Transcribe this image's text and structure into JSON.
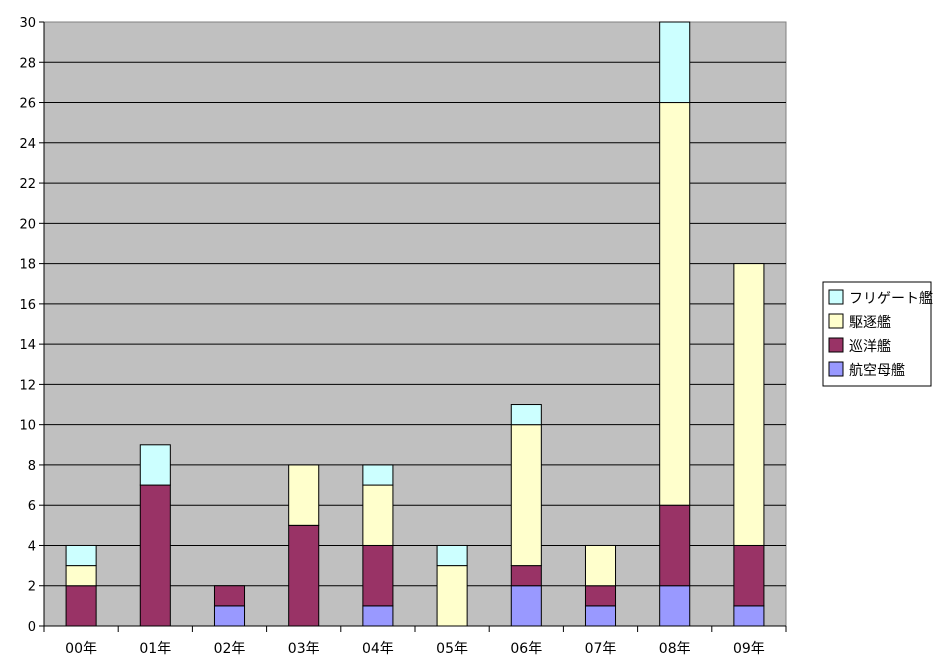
{
  "chart_data": {
    "type": "bar",
    "stacked": true,
    "categories": [
      "00年",
      "01年",
      "02年",
      "03年",
      "04年",
      "05年",
      "06年",
      "07年",
      "08年",
      "09年"
    ],
    "series": [
      {
        "name": "航空母艦",
        "color": "#9999ff",
        "values": [
          0,
          0,
          1,
          0,
          1,
          0,
          2,
          1,
          2,
          1
        ]
      },
      {
        "name": "巡洋艦",
        "color": "#993366",
        "values": [
          2,
          7,
          1,
          5,
          3,
          0,
          1,
          1,
          4,
          3
        ]
      },
      {
        "name": "駆逐艦",
        "color": "#ffffcc",
        "values": [
          1,
          0,
          0,
          3,
          3,
          3,
          7,
          2,
          20,
          14
        ]
      },
      {
        "name": "フリゲート艦",
        "color": "#ccffff",
        "values": [
          1,
          2,
          0,
          0,
          1,
          1,
          1,
          0,
          4,
          0
        ]
      }
    ],
    "legend_order": [
      "フリゲート艦",
      "駆逐艦",
      "巡洋艦",
      "航空母艦"
    ],
    "ylim": [
      0,
      30
    ],
    "ytick_step": 2,
    "grid": true,
    "legend_position": "right",
    "plot_background": "#c0c0c0"
  }
}
